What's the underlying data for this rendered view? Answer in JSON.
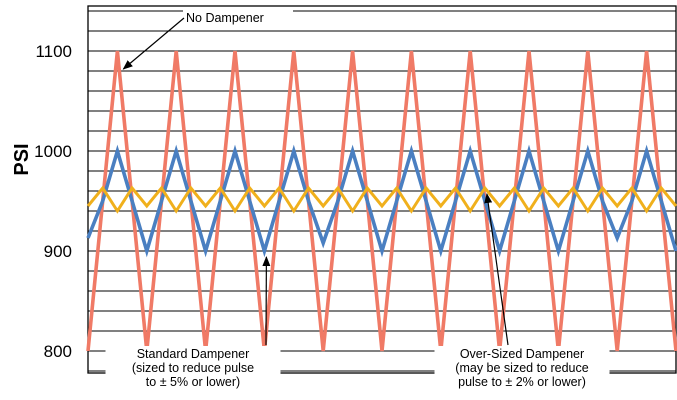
{
  "chart_data": {
    "type": "line",
    "ylabel": "PSI",
    "ylim": [
      778,
      1145
    ],
    "yticks": [
      800,
      900,
      1000,
      1100
    ],
    "grid": true,
    "xlim": [
      0,
      50
    ],
    "colors": {
      "no_dampener": "#f07a66",
      "standard": "#4a7fc1",
      "oversized": "#f0b01c"
    },
    "series": [
      {
        "key": "no_dampener",
        "x": [
          0,
          2.5,
          5,
          7.5,
          10,
          12.5,
          15,
          17.5,
          20,
          22.5,
          25,
          27.5,
          30,
          32.5,
          35,
          37.5,
          40,
          42.5,
          45,
          47.5,
          50
        ],
        "values": [
          800,
          1100,
          800,
          1100,
          800,
          1100,
          800,
          1100,
          800,
          1100,
          800,
          1100,
          800,
          1100,
          800,
          1100,
          800,
          1100,
          800,
          1100,
          800
        ]
      },
      {
        "key": "standard",
        "x": [
          0,
          1.25,
          2.5,
          3.75,
          5,
          6.25,
          7.5,
          8.75,
          10,
          11.25,
          12.5,
          13.75,
          15,
          16.25,
          17.5,
          18.75,
          20,
          21.25,
          22.5,
          23.75,
          25,
          26.25,
          27.5,
          28.75,
          30,
          31.25,
          32.5,
          33.75,
          35,
          36.25,
          37.5,
          38.75,
          40,
          41.25,
          42.5,
          43.75,
          45,
          46.25,
          47.5,
          48.75,
          50
        ],
        "values": [
          913,
          950,
          1000,
          950,
          900,
          950,
          1000,
          950,
          900,
          950,
          1000,
          950,
          900,
          950,
          1000,
          950,
          908,
          950,
          1000,
          950,
          900,
          950,
          1000,
          950,
          900,
          950,
          1000,
          950,
          900,
          950,
          1000,
          950,
          900,
          950,
          1000,
          950,
          913,
          950,
          1000,
          950,
          900
        ]
      },
      {
        "key": "oversized",
        "x": [
          0,
          1.25,
          2.5,
          3.75,
          5,
          6.25,
          7.5,
          8.75,
          10,
          11.25,
          12.5,
          13.75,
          15,
          16.25,
          17.5,
          18.75,
          20,
          21.25,
          22.5,
          23.75,
          25,
          26.25,
          27.5,
          28.75,
          30,
          31.25,
          32.5,
          33.75,
          35,
          36.25,
          37.5,
          38.75,
          40,
          41.25,
          42.5,
          43.75,
          45,
          46.25,
          47.5,
          48.75,
          50
        ],
        "values": [
          945,
          963,
          940,
          963,
          945,
          963,
          940,
          963,
          945,
          963,
          940,
          963,
          945,
          963,
          940,
          963,
          945,
          963,
          940,
          963,
          945,
          963,
          940,
          963,
          945,
          963,
          940,
          963,
          945,
          963,
          940,
          963,
          945,
          963,
          940,
          963,
          945,
          963,
          940,
          963,
          945
        ]
      }
    ],
    "annotations": {
      "no_dampener": {
        "lines": [
          "No Dampener"
        ],
        "x": 2.5,
        "y": 1100
      },
      "standard": {
        "lines": [
          "Standard Dampener",
          "(sized to reduce pulse",
          "to ± 5% or lower)"
        ],
        "x": 15,
        "y": 900
      },
      "oversized": {
        "lines": [
          "Over-Sized Dampener",
          "(may be sized to reduce",
          "pulse to ± 2% or lower)"
        ],
        "x": 33.75,
        "y": 963
      }
    }
  }
}
